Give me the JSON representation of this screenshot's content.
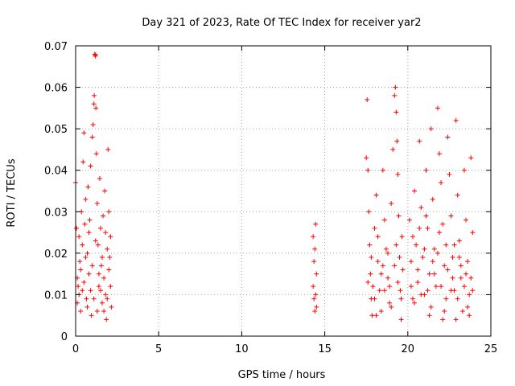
{
  "chart_data": {
    "type": "scatter",
    "title": "Day 321 of 2023, Rate Of TEC Index for receiver yar2",
    "xlabel": "GPS time / hours",
    "ylabel": "ROTI / TECUs",
    "xlim": [
      0,
      25
    ],
    "ylim": [
      0,
      0.07
    ],
    "xticks": [
      0,
      5,
      10,
      15,
      20,
      25
    ],
    "xtick_labels": [
      "0",
      "5",
      "10",
      "15",
      "20",
      "25"
    ],
    "yticks": [
      0,
      0.01,
      0.02,
      0.03,
      0.04,
      0.05,
      0.06,
      0.07
    ],
    "ytick_labels": [
      "0",
      "0.01",
      "0.02",
      "0.03",
      "0.04",
      "0.05",
      "0.06",
      "0.07"
    ],
    "grid": true,
    "marker": "+",
    "series_color": "#ff0000",
    "series": [
      {
        "name": "ROTI",
        "points": [
          [
            0.0,
            0.037
          ],
          [
            0.05,
            0.026
          ],
          [
            0.1,
            0.008
          ],
          [
            0.15,
            0.012
          ],
          [
            0.2,
            0.024
          ],
          [
            0.25,
            0.018
          ],
          [
            0.3,
            0.006
          ],
          [
            0.35,
            0.03
          ],
          [
            0.4,
            0.011
          ],
          [
            0.45,
            0.042
          ],
          [
            0.5,
            0.049
          ],
          [
            0.55,
            0.027
          ],
          [
            0.6,
            0.033
          ],
          [
            0.65,
            0.009
          ],
          [
            0.7,
            0.02
          ],
          [
            0.75,
            0.036
          ],
          [
            0.8,
            0.015
          ],
          [
            0.85,
            0.028
          ],
          [
            0.9,
            0.041
          ],
          [
            0.95,
            0.005
          ],
          [
            1.0,
            0.048
          ],
          [
            1.05,
            0.051
          ],
          [
            1.1,
            0.056
          ],
          [
            1.12,
            0.058
          ],
          [
            1.15,
            0.068
          ],
          [
            1.18,
            0.0675
          ],
          [
            1.2,
            0.0678
          ],
          [
            1.22,
            0.055
          ],
          [
            1.25,
            0.044
          ],
          [
            1.3,
            0.032
          ],
          [
            1.35,
            0.022
          ],
          [
            1.4,
            0.012
          ],
          [
            1.45,
            0.038
          ],
          [
            1.5,
            0.026
          ],
          [
            1.55,
            0.017
          ],
          [
            1.6,
            0.008
          ],
          [
            1.65,
            0.029
          ],
          [
            1.7,
            0.014
          ],
          [
            1.75,
            0.035
          ],
          [
            1.8,
            0.01
          ],
          [
            1.85,
            0.004
          ],
          [
            1.9,
            0.021
          ],
          [
            1.95,
            0.045
          ],
          [
            2.0,
            0.03
          ],
          [
            2.05,
            0.019
          ],
          [
            2.1,
            0.012
          ],
          [
            2.15,
            0.007
          ],
          [
            0.1,
            0.014
          ],
          [
            0.2,
            0.01
          ],
          [
            0.3,
            0.016
          ],
          [
            0.4,
            0.022
          ],
          [
            0.5,
            0.013
          ],
          [
            0.6,
            0.019
          ],
          [
            0.7,
            0.007
          ],
          [
            0.8,
            0.025
          ],
          [
            0.9,
            0.011
          ],
          [
            1.0,
            0.017
          ],
          [
            1.1,
            0.009
          ],
          [
            1.2,
            0.023
          ],
          [
            1.3,
            0.006
          ],
          [
            1.4,
            0.015
          ],
          [
            1.5,
            0.011
          ],
          [
            1.6,
            0.019
          ],
          [
            1.7,
            0.006
          ],
          [
            1.8,
            0.025
          ],
          [
            1.9,
            0.009
          ],
          [
            2.0,
            0.016
          ],
          [
            2.1,
            0.024
          ],
          [
            14.3,
            0.024
          ],
          [
            14.35,
            0.018
          ],
          [
            14.4,
            0.021
          ],
          [
            14.45,
            0.027
          ],
          [
            14.5,
            0.015
          ],
          [
            14.3,
            0.012
          ],
          [
            14.35,
            0.009
          ],
          [
            14.4,
            0.006
          ],
          [
            14.45,
            0.01
          ],
          [
            14.5,
            0.007
          ],
          [
            17.5,
            0.043
          ],
          [
            17.55,
            0.057
          ],
          [
            17.6,
            0.04
          ],
          [
            17.65,
            0.03
          ],
          [
            17.7,
            0.022
          ],
          [
            17.75,
            0.015
          ],
          [
            17.8,
            0.009
          ],
          [
            17.85,
            0.005
          ],
          [
            17.9,
            0.012
          ],
          [
            18.0,
            0.026
          ],
          [
            18.1,
            0.034
          ],
          [
            18.2,
            0.018
          ],
          [
            18.3,
            0.011
          ],
          [
            18.4,
            0.006
          ],
          [
            18.5,
            0.04
          ],
          [
            18.6,
            0.028
          ],
          [
            18.7,
            0.021
          ],
          [
            18.8,
            0.014
          ],
          [
            18.9,
            0.008
          ],
          [
            19.0,
            0.032
          ],
          [
            19.1,
            0.045
          ],
          [
            19.2,
            0.058
          ],
          [
            19.25,
            0.06
          ],
          [
            19.3,
            0.054
          ],
          [
            19.35,
            0.047
          ],
          [
            19.4,
            0.039
          ],
          [
            19.45,
            0.029
          ],
          [
            19.5,
            0.019
          ],
          [
            19.55,
            0.011
          ],
          [
            19.6,
            0.004
          ],
          [
            19.65,
            0.024
          ],
          [
            19.7,
            0.016
          ],
          [
            17.6,
            0.013
          ],
          [
            17.8,
            0.019
          ],
          [
            18.0,
            0.009
          ],
          [
            18.2,
            0.024
          ],
          [
            18.4,
            0.015
          ],
          [
            18.6,
            0.011
          ],
          [
            18.8,
            0.02
          ],
          [
            19.0,
            0.007
          ],
          [
            19.2,
            0.017
          ],
          [
            19.4,
            0.013
          ],
          [
            19.6,
            0.009
          ],
          [
            18.1,
            0.005
          ],
          [
            18.5,
            0.017
          ],
          [
            18.9,
            0.012
          ],
          [
            19.3,
            0.022
          ],
          [
            20.1,
            0.028
          ],
          [
            20.2,
            0.018
          ],
          [
            20.3,
            0.009
          ],
          [
            20.4,
            0.035
          ],
          [
            20.5,
            0.022
          ],
          [
            20.6,
            0.013
          ],
          [
            20.7,
            0.047
          ],
          [
            20.8,
            0.031
          ],
          [
            20.9,
            0.019
          ],
          [
            21.0,
            0.01
          ],
          [
            21.1,
            0.04
          ],
          [
            21.2,
            0.026
          ],
          [
            21.3,
            0.015
          ],
          [
            21.4,
            0.05
          ],
          [
            21.5,
            0.033
          ],
          [
            21.6,
            0.021
          ],
          [
            21.7,
            0.012
          ],
          [
            21.8,
            0.055
          ],
          [
            21.9,
            0.044
          ],
          [
            22.0,
            0.037
          ],
          [
            22.1,
            0.027
          ],
          [
            22.2,
            0.017
          ],
          [
            22.3,
            0.009
          ],
          [
            22.4,
            0.048
          ],
          [
            22.5,
            0.039
          ],
          [
            22.6,
            0.029
          ],
          [
            22.7,
            0.019
          ],
          [
            22.8,
            0.011
          ],
          [
            22.9,
            0.052
          ],
          [
            23.0,
            0.034
          ],
          [
            23.1,
            0.023
          ],
          [
            23.2,
            0.014
          ],
          [
            23.3,
            0.006
          ],
          [
            23.4,
            0.04
          ],
          [
            23.5,
            0.028
          ],
          [
            23.6,
            0.018
          ],
          [
            23.7,
            0.01
          ],
          [
            23.8,
            0.043
          ],
          [
            23.9,
            0.025
          ],
          [
            20.2,
            0.012
          ],
          [
            20.4,
            0.008
          ],
          [
            20.6,
            0.016
          ],
          [
            20.8,
            0.01
          ],
          [
            21.0,
            0.021
          ],
          [
            21.2,
            0.011
          ],
          [
            21.4,
            0.007
          ],
          [
            21.6,
            0.015
          ],
          [
            21.8,
            0.02
          ],
          [
            22.0,
            0.012
          ],
          [
            22.2,
            0.006
          ],
          [
            22.4,
            0.016
          ],
          [
            22.6,
            0.011
          ],
          [
            22.8,
            0.022
          ],
          [
            23.0,
            0.009
          ],
          [
            23.2,
            0.017
          ],
          [
            23.4,
            0.012
          ],
          [
            23.6,
            0.007
          ],
          [
            23.8,
            0.014
          ],
          [
            20.3,
            0.024
          ],
          [
            20.7,
            0.026
          ],
          [
            21.1,
            0.029
          ],
          [
            21.5,
            0.018
          ],
          [
            21.9,
            0.025
          ],
          [
            22.3,
            0.022
          ],
          [
            22.7,
            0.014
          ],
          [
            23.1,
            0.019
          ],
          [
            23.5,
            0.015
          ],
          [
            23.9,
            0.011
          ],
          [
            21.3,
            0.005
          ],
          [
            22.1,
            0.004
          ],
          [
            22.9,
            0.004
          ],
          [
            23.7,
            0.005
          ]
        ]
      }
    ]
  }
}
